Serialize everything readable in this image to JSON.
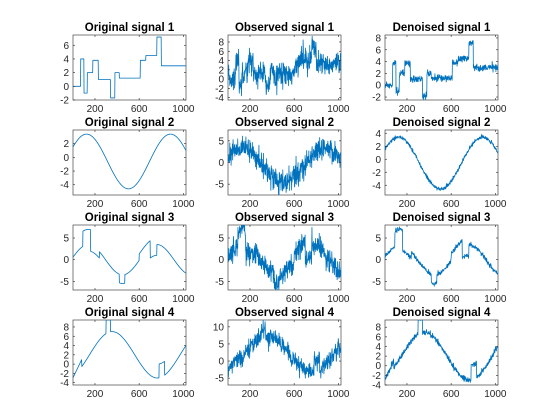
{
  "line_color": "#0072bd",
  "chart_data": [
    {
      "type": "line",
      "title": "Original signal 1",
      "xlim": [
        1,
        1024
      ],
      "ylim": [
        -2,
        7.5
      ],
      "xticks": [
        200,
        600,
        1000
      ],
      "yticks": [
        -2,
        0,
        2,
        4,
        6
      ],
      "shape": "blocks",
      "noise": 0
    },
    {
      "type": "line",
      "title": "Observed signal 1",
      "xlim": [
        1,
        1024
      ],
      "ylim": [
        -4.5,
        9.5
      ],
      "xticks": [
        200,
        600,
        1000
      ],
      "yticks": [
        -4,
        -2,
        0,
        2,
        4,
        6,
        8
      ],
      "shape": "blocks",
      "noise": 1.3
    },
    {
      "type": "line",
      "title": "Denoised signal 1",
      "xlim": [
        1,
        1024
      ],
      "ylim": [
        -2.5,
        8.5
      ],
      "xticks": [
        200,
        600,
        1000
      ],
      "yticks": [
        -2,
        0,
        2,
        4,
        6,
        8
      ],
      "shape": "blocks",
      "noise": 0.3
    },
    {
      "type": "line",
      "title": "Original signal 2",
      "xlim": [
        1,
        1024
      ],
      "ylim": [
        -5.5,
        4
      ],
      "xticks": [
        200,
        600,
        1000
      ],
      "yticks": [
        -4,
        -2,
        0,
        2
      ],
      "shape": "bumps",
      "noise": 0
    },
    {
      "type": "line",
      "title": "Observed signal 2",
      "xlim": [
        1,
        1024
      ],
      "ylim": [
        -7.5,
        7.5
      ],
      "xticks": [
        200,
        600,
        1000
      ],
      "yticks": [
        -5,
        0,
        5
      ],
      "shape": "bumps",
      "noise": 1.3
    },
    {
      "type": "line",
      "title": "Denoised signal 2",
      "xlim": [
        1,
        1024
      ],
      "ylim": [
        -5.5,
        4.5
      ],
      "xticks": [
        200,
        600,
        1000
      ],
      "yticks": [
        -4,
        -2,
        0,
        2,
        4
      ],
      "shape": "bumps",
      "noise": 0.15
    },
    {
      "type": "line",
      "title": "Original signal 3",
      "xlim": [
        1,
        1024
      ],
      "ylim": [
        -7,
        8
      ],
      "xticks": [
        200,
        600,
        1000
      ],
      "yticks": [
        -5,
        0,
        5
      ],
      "shape": "heavisine",
      "noise": 0
    },
    {
      "type": "line",
      "title": "Observed signal 3",
      "xlim": [
        1,
        1024
      ],
      "ylim": [
        -7,
        8
      ],
      "xticks": [
        200,
        600,
        1000
      ],
      "yticks": [
        -5,
        0,
        5
      ],
      "shape": "heavisine",
      "noise": 1.3
    },
    {
      "type": "line",
      "title": "Denoised signal 3",
      "xlim": [
        1,
        1024
      ],
      "ylim": [
        -7,
        8
      ],
      "xticks": [
        200,
        600,
        1000
      ],
      "yticks": [
        -5,
        0,
        5
      ],
      "shape": "heavisine",
      "noise": 0.25
    },
    {
      "type": "line",
      "title": "Original signal 4",
      "xlim": [
        1,
        1024
      ],
      "ylim": [
        -4.5,
        9.5
      ],
      "xticks": [
        200,
        600,
        1000
      ],
      "yticks": [
        -4,
        -2,
        0,
        2,
        4,
        6,
        8
      ],
      "shape": "doppler",
      "noise": 0
    },
    {
      "type": "line",
      "title": "Observed signal 4",
      "xlim": [
        1,
        1024
      ],
      "ylim": [
        -7,
        12
      ],
      "xticks": [
        200,
        600,
        1000
      ],
      "yticks": [
        -5,
        0,
        5,
        10
      ],
      "shape": "doppler",
      "noise": 1.3
    },
    {
      "type": "line",
      "title": "Denoised signal 4",
      "xlim": [
        1,
        1024
      ],
      "ylim": [
        -4,
        9.5
      ],
      "xticks": [
        200,
        600,
        1000
      ],
      "yticks": [
        -4,
        -2,
        0,
        2,
        4,
        6,
        8
      ],
      "shape": "doppler",
      "noise": 0.3
    }
  ]
}
